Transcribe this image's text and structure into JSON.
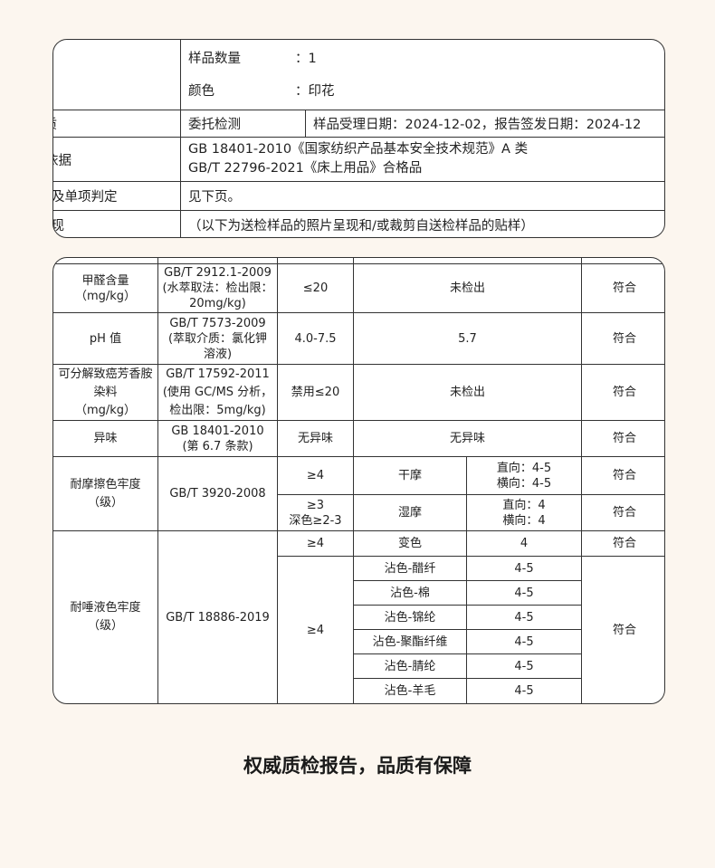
{
  "info": {
    "sample_qty_label": "样品数量",
    "sample_qty_value": "：1",
    "color_label": "颜色",
    "color_value": "：印花",
    "nature_label": "性质",
    "nature_value": "委托检测",
    "dates": "样品受理日期：2024-12-02，报告签发日期：2024-12",
    "basis_label": "判定依据",
    "basis_1": "GB 18401-2010《国家纺织产品基本安全技术规范》A 类",
    "basis_2": "GB/T 22796-2021《床上用品》合格品",
    "result_label": "结果及单项判定",
    "result_value": "见下页。",
    "present_label": "呈现",
    "present_value": "（以下为送检样品的照片呈现和/或裁剪自送检样品的贴样）"
  },
  "results": {
    "formaldehyde": {
      "item": [
        "甲醛含量",
        "（mg/kg）"
      ],
      "method": [
        "GB/T 2912.1-2009",
        "(水萃取法：检出限：",
        "20mg/kg)"
      ],
      "req": "≤20",
      "result": "未检出",
      "verdict": "符合"
    },
    "ph": {
      "item": "pH 值",
      "method": [
        "GB/T 7573-2009",
        "(萃取介质：氯化钾",
        "溶液)"
      ],
      "req": "4.0-7.5",
      "result": "5.7",
      "verdict": "符合"
    },
    "azo": {
      "item": [
        "可分解致癌芳香胺",
        "染料",
        "（mg/kg）"
      ],
      "method": [
        "GB/T 17592-2011",
        "(使用 GC/MS 分析，",
        "检出限：5mg/kg)"
      ],
      "req": "禁用≤20",
      "result": "未检出",
      "verdict": "符合"
    },
    "odor": {
      "item": "异味",
      "method": [
        "GB 18401-2010",
        "(第 6.7 条款)"
      ],
      "req": "无异味",
      "result": "无异味",
      "verdict": "符合"
    },
    "rubbing": {
      "item": [
        "耐摩擦色牢度",
        "（级）"
      ],
      "method": "GB/T 3920-2008",
      "dry": {
        "req": "≥4",
        "type": "干摩",
        "result": [
          "直向：4-5",
          "横向：4-5"
        ],
        "verdict": "符合"
      },
      "wet": {
        "req": [
          "≥3",
          "深色≥2-3"
        ],
        "type": "湿摩",
        "result": [
          "直向：4",
          "横向：4"
        ],
        "verdict": "符合"
      }
    },
    "saliva": {
      "item": [
        "耐唾液色牢度",
        "（级）"
      ],
      "method": "GB/T 18886-2019",
      "change": {
        "req": "≥4",
        "type": "变色",
        "result": "4",
        "verdict": "符合"
      },
      "stain_req": "≥4",
      "stain_verdict": "符合",
      "stains": [
        {
          "type": "沾色-醋纤",
          "result": "4-5"
        },
        {
          "type": "沾色-棉",
          "result": "4-5"
        },
        {
          "type": "沾色-锦纶",
          "result": "4-5"
        },
        {
          "type": "沾色-聚酯纤维",
          "result": "4-5"
        },
        {
          "type": "沾色-腈纶",
          "result": "4-5"
        },
        {
          "type": "沾色-羊毛",
          "result": "4-5"
        }
      ]
    }
  },
  "caption": "权威质检报告，品质有保障"
}
